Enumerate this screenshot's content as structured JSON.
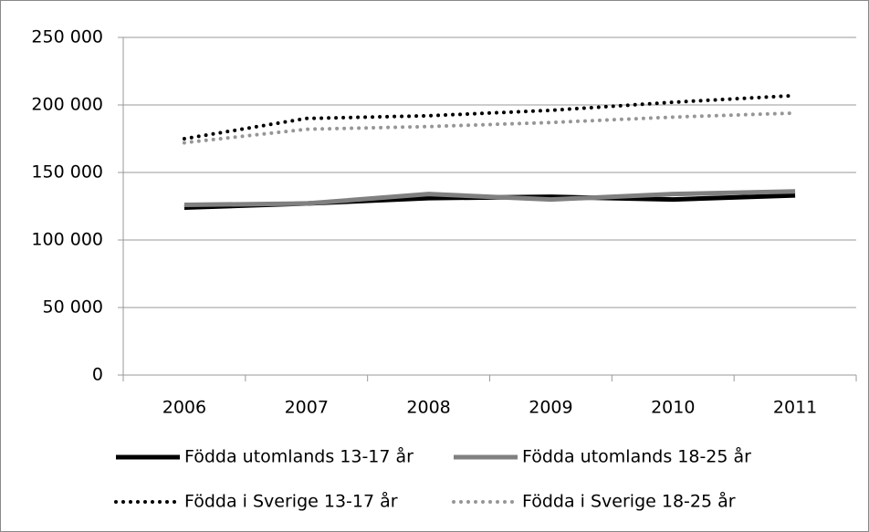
{
  "chart_data": {
    "type": "line",
    "categories": [
      "2006",
      "2007",
      "2008",
      "2009",
      "2010",
      "2011"
    ],
    "series": [
      {
        "name": "Födda utomlands 13-17 år",
        "color": "#000000",
        "dash": "solid",
        "values": [
          124000,
          127000,
          131000,
          132000,
          130000,
          133000
        ]
      },
      {
        "name": "Födda utomlands 18-25 år",
        "color": "#808080",
        "dash": "solid",
        "values": [
          126000,
          127000,
          134000,
          130000,
          134000,
          136000
        ]
      },
      {
        "name": "Födda i Sverige 13-17 år",
        "color": "#000000",
        "dash": "dotted",
        "values": [
          175000,
          190000,
          192000,
          196000,
          202000,
          207000
        ]
      },
      {
        "name": "Födda i Sverige 18-25 år",
        "color": "#969696",
        "dash": "dotted",
        "values": [
          172000,
          182000,
          184000,
          187000,
          191000,
          194000
        ]
      }
    ],
    "ylim": [
      0,
      250000
    ],
    "yticks": [
      0,
      {
        "value": 50000,
        "label": "50 000"
      },
      {
        "value": 100000,
        "label": "100 000"
      },
      {
        "value": 150000,
        "label": "150 000"
      },
      {
        "value": 200000,
        "label": "200 000"
      },
      {
        "value": 250000,
        "label": "250 000"
      }
    ],
    "grid": true,
    "legend": "bottom"
  }
}
